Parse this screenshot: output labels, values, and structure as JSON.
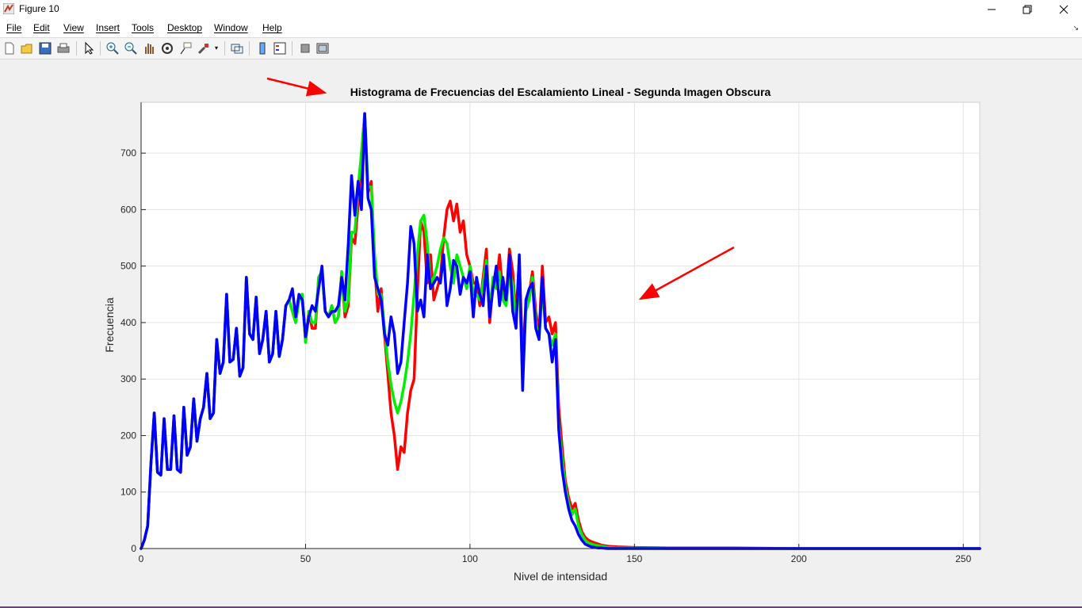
{
  "window": {
    "title": "Figure 10",
    "icon": "matlab-figure-icon"
  },
  "menu": {
    "items": [
      {
        "label": "File"
      },
      {
        "label": "Edit"
      },
      {
        "label": "View"
      },
      {
        "label": "Insert"
      },
      {
        "label": "Tools"
      },
      {
        "label": "Desktop"
      },
      {
        "label": "Window"
      },
      {
        "label": "Help"
      }
    ]
  },
  "toolbar": {
    "icons": [
      "new-figure-icon",
      "open-file-icon",
      "save-icon",
      "print-icon",
      "select-arrow-icon",
      "zoom-in-icon",
      "zoom-out-icon",
      "pan-hand-icon",
      "rotate-3d-icon",
      "data-cursor-icon",
      "brush-icon",
      "link-plot-icon",
      "colorbar-icon",
      "legend-icon",
      "hide-plot-tools-icon",
      "show-plot-tools-icon"
    ]
  },
  "chart_data": {
    "type": "line",
    "title": "Histograma de Frecuencias del Escalamiento Lineal - Segunda Imagen Obscura",
    "xlabel": "Nivel de intensidad",
    "ylabel": "Frecuencia",
    "xlim": [
      0,
      255
    ],
    "ylim": [
      0,
      790
    ],
    "xticks": [
      0,
      50,
      100,
      150,
      200,
      250
    ],
    "yticks": [
      0,
      100,
      200,
      300,
      400,
      500,
      600,
      700
    ],
    "grid": true,
    "series": [
      {
        "color": "#ff0000",
        "x": [
          0,
          1,
          2,
          3,
          4,
          5,
          6,
          7,
          8,
          9,
          10,
          11,
          12,
          13,
          14,
          15,
          16,
          17,
          18,
          19,
          20,
          21,
          22,
          23,
          24,
          25,
          26,
          27,
          28,
          29,
          30,
          31,
          32,
          33,
          34,
          35,
          36,
          37,
          38,
          39,
          40,
          41,
          42,
          43,
          44,
          45,
          46,
          47,
          48,
          49,
          50,
          51,
          52,
          53,
          54,
          55,
          56,
          57,
          58,
          59,
          60,
          61,
          62,
          63,
          64,
          65,
          66,
          67,
          68,
          69,
          70,
          71,
          72,
          73,
          74,
          75,
          76,
          77,
          78,
          79,
          80,
          81,
          82,
          83,
          84,
          85,
          86,
          87,
          88,
          89,
          90,
          91,
          92,
          93,
          94,
          95,
          96,
          97,
          98,
          99,
          100,
          101,
          102,
          103,
          104,
          105,
          106,
          107,
          108,
          109,
          110,
          111,
          112,
          113,
          114,
          115,
          116,
          117,
          118,
          119,
          120,
          121,
          122,
          123,
          124,
          125,
          126,
          127,
          128,
          129,
          130,
          131,
          132,
          133,
          134,
          135,
          136,
          137,
          138,
          139,
          140,
          142,
          145,
          150,
          160,
          180,
          200,
          220,
          255
        ],
        "y": [
          0,
          15,
          40,
          150,
          240,
          135,
          130,
          230,
          140,
          140,
          235,
          140,
          135,
          250,
          165,
          180,
          265,
          190,
          230,
          250,
          310,
          230,
          240,
          370,
          310,
          330,
          450,
          330,
          335,
          390,
          305,
          320,
          480,
          380,
          370,
          445,
          345,
          370,
          420,
          330,
          345,
          420,
          340,
          370,
          430,
          440,
          420,
          400,
          440,
          450,
          365,
          420,
          390,
          390,
          480,
          490,
          420,
          410,
          430,
          400,
          410,
          490,
          410,
          430,
          550,
          540,
          610,
          700,
          770,
          630,
          650,
          500,
          420,
          460,
          380,
          310,
          240,
          200,
          140,
          180,
          170,
          240,
          280,
          300,
          450,
          580,
          560,
          470,
          520,
          440,
          460,
          480,
          550,
          600,
          615,
          580,
          610,
          560,
          580,
          520,
          500,
          470,
          470,
          430,
          480,
          530,
          400,
          470,
          470,
          520,
          450,
          440,
          530,
          490,
          410,
          510,
          340,
          430,
          450,
          490,
          420,
          380,
          500,
          400,
          410,
          380,
          400,
          250,
          180,
          120,
          90,
          70,
          80,
          50,
          30,
          20,
          15,
          12,
          10,
          8,
          6,
          4,
          3,
          2,
          1,
          1,
          0,
          0,
          0
        ]
      },
      {
        "color": "#00ee00",
        "x": [
          0,
          1,
          2,
          3,
          4,
          5,
          6,
          7,
          8,
          9,
          10,
          11,
          12,
          13,
          14,
          15,
          16,
          17,
          18,
          19,
          20,
          21,
          22,
          23,
          24,
          25,
          26,
          27,
          28,
          29,
          30,
          31,
          32,
          33,
          34,
          35,
          36,
          37,
          38,
          39,
          40,
          41,
          42,
          43,
          44,
          45,
          46,
          47,
          48,
          49,
          50,
          51,
          52,
          53,
          54,
          55,
          56,
          57,
          58,
          59,
          60,
          61,
          62,
          63,
          64,
          65,
          66,
          67,
          68,
          69,
          70,
          71,
          72,
          73,
          74,
          75,
          76,
          77,
          78,
          79,
          80,
          81,
          82,
          83,
          84,
          85,
          86,
          87,
          88,
          89,
          90,
          91,
          92,
          93,
          94,
          95,
          96,
          97,
          98,
          99,
          100,
          101,
          102,
          103,
          104,
          105,
          106,
          107,
          108,
          109,
          110,
          111,
          112,
          113,
          114,
          115,
          116,
          117,
          118,
          119,
          120,
          121,
          122,
          123,
          124,
          125,
          126,
          127,
          128,
          129,
          130,
          131,
          132,
          133,
          134,
          135,
          136,
          137,
          138,
          139,
          140,
          142,
          145,
          150,
          160,
          180,
          200,
          220,
          255
        ],
        "y": [
          0,
          15,
          40,
          150,
          240,
          135,
          130,
          230,
          140,
          140,
          235,
          140,
          135,
          250,
          165,
          180,
          265,
          190,
          230,
          250,
          310,
          230,
          240,
          370,
          310,
          330,
          450,
          330,
          335,
          390,
          305,
          320,
          480,
          380,
          370,
          445,
          345,
          370,
          420,
          330,
          345,
          420,
          340,
          370,
          430,
          440,
          420,
          400,
          440,
          450,
          365,
          420,
          400,
          400,
          480,
          490,
          420,
          410,
          430,
          400,
          410,
          490,
          420,
          440,
          560,
          560,
          640,
          700,
          770,
          640,
          640,
          520,
          450,
          450,
          390,
          330,
          290,
          260,
          240,
          260,
          290,
          330,
          380,
          450,
          520,
          580,
          590,
          540,
          470,
          480,
          500,
          530,
          550,
          540,
          500,
          470,
          520,
          500,
          480,
          460,
          500,
          450,
          450,
          440,
          470,
          510,
          420,
          480,
          460,
          490,
          440,
          430,
          490,
          470,
          400,
          480,
          300,
          420,
          440,
          480,
          400,
          370,
          460,
          390,
          380,
          360,
          380,
          220,
          160,
          110,
          80,
          60,
          70,
          40,
          25,
          15,
          10,
          8,
          6,
          5,
          4,
          2,
          1,
          1,
          0,
          0,
          0,
          0,
          0
        ]
      },
      {
        "color": "#0000ff",
        "x": [
          0,
          1,
          2,
          3,
          4,
          5,
          6,
          7,
          8,
          9,
          10,
          11,
          12,
          13,
          14,
          15,
          16,
          17,
          18,
          19,
          20,
          21,
          22,
          23,
          24,
          25,
          26,
          27,
          28,
          29,
          30,
          31,
          32,
          33,
          34,
          35,
          36,
          37,
          38,
          39,
          40,
          41,
          42,
          43,
          44,
          45,
          46,
          47,
          48,
          49,
          50,
          51,
          52,
          53,
          54,
          55,
          56,
          57,
          58,
          59,
          60,
          61,
          62,
          63,
          64,
          65,
          66,
          67,
          68,
          69,
          70,
          71,
          72,
          73,
          74,
          75,
          76,
          77,
          78,
          79,
          80,
          81,
          82,
          83,
          84,
          85,
          86,
          87,
          88,
          89,
          90,
          91,
          92,
          93,
          94,
          95,
          96,
          97,
          98,
          99,
          100,
          101,
          102,
          103,
          104,
          105,
          106,
          107,
          108,
          109,
          110,
          111,
          112,
          113,
          114,
          115,
          116,
          117,
          118,
          119,
          120,
          121,
          122,
          123,
          124,
          125,
          126,
          127,
          128,
          129,
          130,
          131,
          132,
          133,
          134,
          135,
          136,
          137,
          138,
          139,
          140,
          142,
          145,
          150,
          160,
          180,
          200,
          220,
          255
        ],
        "y": [
          0,
          15,
          40,
          150,
          240,
          135,
          130,
          230,
          140,
          140,
          235,
          140,
          135,
          250,
          165,
          180,
          265,
          190,
          230,
          250,
          310,
          230,
          240,
          370,
          310,
          330,
          450,
          330,
          335,
          390,
          305,
          320,
          480,
          380,
          370,
          445,
          345,
          370,
          420,
          330,
          345,
          420,
          340,
          370,
          430,
          440,
          460,
          410,
          450,
          440,
          375,
          410,
          430,
          420,
          460,
          500,
          420,
          410,
          420,
          420,
          430,
          480,
          440,
          540,
          660,
          590,
          650,
          600,
          770,
          620,
          600,
          480,
          460,
          440,
          380,
          360,
          410,
          380,
          310,
          330,
          400,
          470,
          570,
          540,
          420,
          440,
          410,
          520,
          460,
          470,
          480,
          470,
          520,
          430,
          460,
          510,
          500,
          450,
          480,
          470,
          490,
          410,
          480,
          450,
          430,
          500,
          410,
          460,
          500,
          430,
          480,
          440,
          520,
          420,
          390,
          520,
          280,
          440,
          460,
          470,
          390,
          370,
          480,
          390,
          380,
          330,
          370,
          210,
          140,
          100,
          70,
          50,
          40,
          25,
          15,
          8,
          5,
          3,
          2,
          1,
          1,
          0,
          0,
          0,
          0,
          0,
          0,
          0,
          0
        ]
      }
    ]
  },
  "annotations": [
    {
      "name": "arrow-to-window-title",
      "color": "#ff0000"
    },
    {
      "name": "arrow-to-plot-title",
      "color": "#ff0000"
    },
    {
      "name": "arrow-to-plot-area",
      "color": "#ff0000"
    }
  ]
}
